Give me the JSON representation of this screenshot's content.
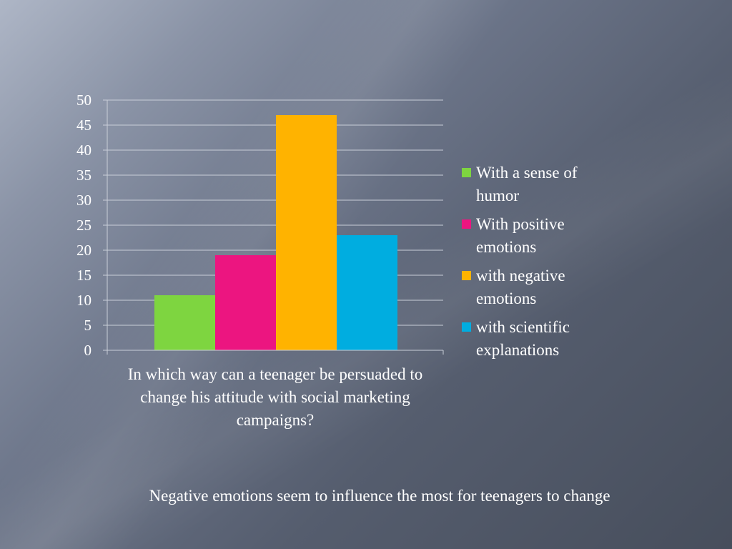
{
  "chart_data": {
    "type": "bar",
    "categories": [
      "In which way can a teenager be persuaded to change his attitude with social marketing campaigns?"
    ],
    "series": [
      {
        "name": "With a sense of humor",
        "color": "#7ed540",
        "values": [
          11
        ]
      },
      {
        "name": "With positive emotions",
        "color": "#ec1580",
        "values": [
          19
        ]
      },
      {
        "name": "with negative emotions",
        "color": "#ffb300",
        "values": [
          47
        ]
      },
      {
        "name": "with scientific explanations",
        "color": "#00ade0",
        "values": [
          23
        ]
      }
    ],
    "ylim": [
      0,
      50
    ],
    "yticks": [
      "0",
      "5",
      "10",
      "15",
      "20",
      "25",
      "30",
      "35",
      "40",
      "45",
      "50"
    ],
    "grid": true,
    "legend_position": "right"
  },
  "caption": "Negative emotions seem to influence the most for teenagers to change"
}
